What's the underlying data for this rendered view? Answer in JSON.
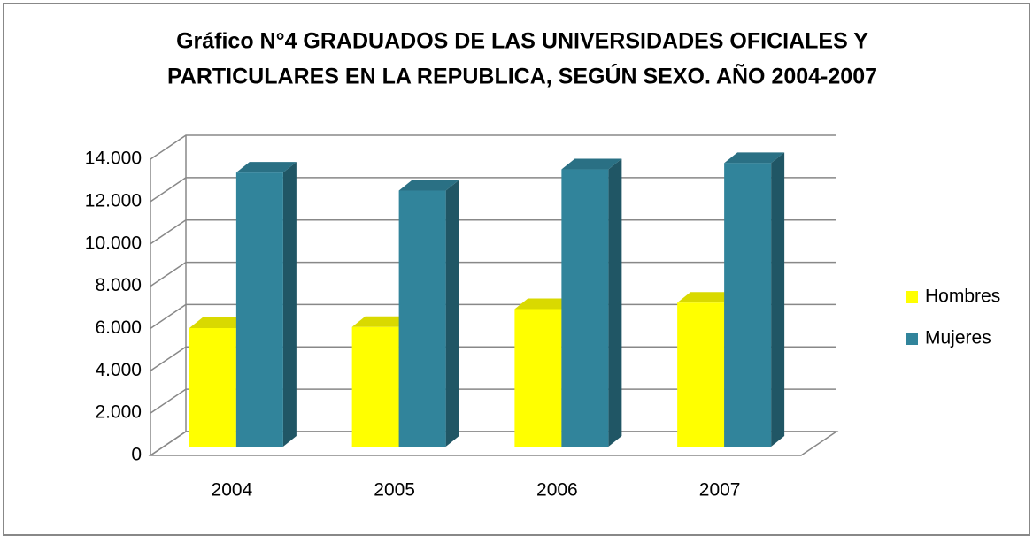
{
  "chart_data": {
    "type": "bar3d",
    "title": [
      "Gráfico N°4 GRADUADOS DE LAS UNIVERSIDADES OFICIALES Y",
      "PARTICULARES EN LA REPUBLICA, SEGÚN SEXO. AÑO 2004-2007"
    ],
    "categories": [
      "2004",
      "2005",
      "2006",
      "2007"
    ],
    "series": [
      {
        "name": "Hombres",
        "color": "#ffff00",
        "values": [
          5600,
          5650,
          6500,
          6800
        ]
      },
      {
        "name": "Mujeres",
        "color": "#31849b",
        "values": [
          12950,
          12100,
          13100,
          13400
        ]
      }
    ],
    "ylim": [
      0,
      14000
    ],
    "yticks": [
      0,
      {
        "value": 2000,
        "label": "2.000"
      },
      {
        "value": 4000,
        "label": "4.000"
      },
      {
        "value": 6000,
        "label": "6.000"
      },
      {
        "value": 8000,
        "label": "8.000"
      },
      {
        "value": 10000,
        "label": "10.000"
      },
      {
        "value": 12000,
        "label": "12.000"
      },
      {
        "value": 14000,
        "label": "14.000"
      }
    ],
    "grid": true,
    "legend": "right"
  }
}
